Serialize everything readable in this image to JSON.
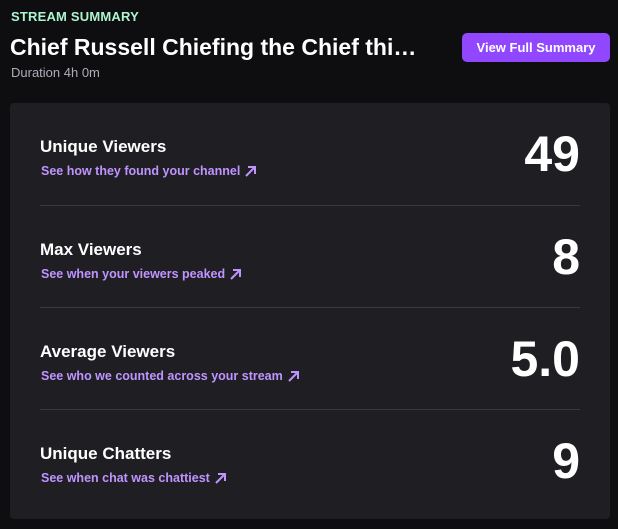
{
  "header": {
    "eyebrow": "STREAM SUMMARY",
    "title": "Chief Russell Chiefing the Chief thi…",
    "duration": "Duration 4h 0m",
    "button": "View Full Summary"
  },
  "stats": [
    {
      "label": "Unique Viewers",
      "link": "See how they found your channel",
      "value": "49"
    },
    {
      "label": "Max Viewers",
      "link": "See when your viewers peaked",
      "value": "8"
    },
    {
      "label": "Average Viewers",
      "link": "See who we counted across your stream",
      "value": "5.0"
    },
    {
      "label": "Unique Chatters",
      "link": "See when chat was chattiest",
      "value": "9"
    }
  ]
}
